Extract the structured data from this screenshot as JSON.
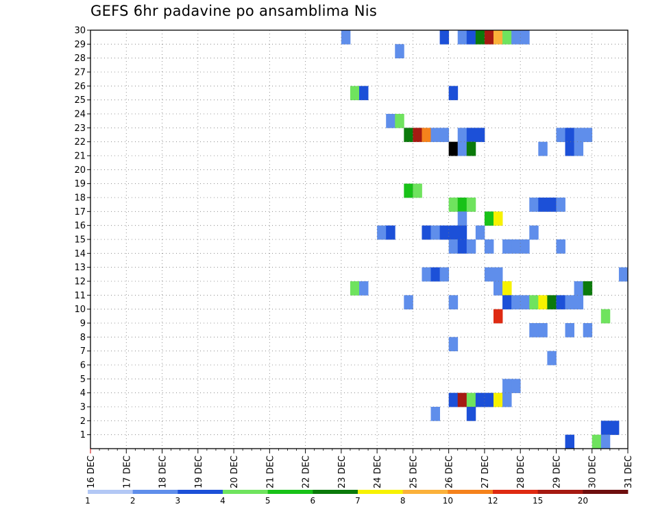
{
  "chart_data": {
    "type": "heatmap",
    "title": "GEFS 6hr padavine po ansamblima Nis",
    "y_labels": [
      "1",
      "2",
      "3",
      "4",
      "5",
      "6",
      "7",
      "8",
      "9",
      "10",
      "11",
      "12",
      "13",
      "14",
      "15",
      "16",
      "17",
      "18",
      "19",
      "20",
      "21",
      "22",
      "23",
      "24",
      "25",
      "26",
      "27",
      "28",
      "29",
      "30"
    ],
    "x_tick_labels": [
      "16 DEC",
      "17 DEC",
      "18 DEC",
      "19 DEC",
      "20 DEC",
      "21 DEC",
      "22 DEC",
      "23 DEC",
      "24 DEC",
      "25 DEC",
      "26 DEC",
      "27 DEC",
      "28 DEC",
      "29 DEC",
      "30 DEC",
      "31 DEC"
    ],
    "x_unit": "6-hour steps from 16 DEC 00Z (4 steps per day)",
    "xlim": [
      0,
      60
    ],
    "ylim": [
      0,
      30
    ],
    "colorbar": {
      "labels": [
        "1",
        "2",
        "3",
        "4",
        "5",
        "6",
        "7",
        "8",
        "10",
        "12",
        "15",
        "20"
      ],
      "colors": [
        "#b3c8f5",
        "#5f8eeb",
        "#1c50d8",
        "#6fe35e",
        "#18c218",
        "#0b7a0b",
        "#f7f200",
        "#fbb13a",
        "#f5821c",
        "#df2a12",
        "#a61a12",
        "#6e0e0e"
      ]
    },
    "cells": [
      [
        28,
        30,
        1
      ],
      [
        39,
        30,
        2
      ],
      [
        41,
        30,
        1
      ],
      [
        42,
        30,
        2
      ],
      [
        43,
        30,
        5
      ],
      [
        44,
        30,
        10
      ],
      [
        45,
        30,
        7
      ],
      [
        46,
        30,
        3
      ],
      [
        47,
        30,
        1
      ],
      [
        48,
        30,
        1
      ],
      [
        34,
        29,
        1
      ],
      [
        29,
        26,
        3
      ],
      [
        30,
        26,
        2
      ],
      [
        40,
        26,
        2
      ],
      [
        33,
        24,
        1
      ],
      [
        34,
        24,
        3
      ],
      [
        35,
        23,
        5
      ],
      [
        36,
        23,
        10
      ],
      [
        37,
        23,
        8
      ],
      [
        38,
        23,
        1
      ],
      [
        39,
        23,
        1
      ],
      [
        41,
        23,
        1
      ],
      [
        42,
        23,
        2
      ],
      [
        43,
        23,
        2
      ],
      [
        52,
        23,
        1
      ],
      [
        53,
        23,
        2
      ],
      [
        54,
        23,
        1
      ],
      [
        55,
        23,
        1
      ],
      [
        40,
        22,
        12
      ],
      [
        41,
        22,
        1
      ],
      [
        42,
        22,
        5
      ],
      [
        50,
        22,
        1
      ],
      [
        53,
        22,
        2
      ],
      [
        54,
        22,
        1
      ],
      [
        35,
        19,
        4
      ],
      [
        36,
        19,
        3
      ],
      [
        40,
        18,
        3
      ],
      [
        41,
        18,
        4
      ],
      [
        42,
        18,
        3
      ],
      [
        49,
        18,
        1
      ],
      [
        50,
        18,
        2
      ],
      [
        51,
        18,
        2
      ],
      [
        52,
        18,
        1
      ],
      [
        41,
        17,
        1
      ],
      [
        44,
        17,
        4
      ],
      [
        45,
        17,
        6
      ],
      [
        32,
        16,
        1
      ],
      [
        33,
        16,
        2
      ],
      [
        37,
        16,
        2
      ],
      [
        38,
        16,
        1
      ],
      [
        39,
        16,
        2
      ],
      [
        40,
        16,
        2
      ],
      [
        41,
        16,
        2
      ],
      [
        43,
        16,
        1
      ],
      [
        49,
        16,
        1
      ],
      [
        40,
        15,
        1
      ],
      [
        41,
        15,
        2
      ],
      [
        42,
        15,
        1
      ],
      [
        44,
        15,
        1
      ],
      [
        46,
        15,
        1
      ],
      [
        47,
        15,
        1
      ],
      [
        48,
        15,
        1
      ],
      [
        52,
        15,
        1
      ],
      [
        37,
        13,
        1
      ],
      [
        38,
        13,
        2
      ],
      [
        39,
        13,
        1
      ],
      [
        44,
        13,
        1
      ],
      [
        45,
        13,
        1
      ],
      [
        59,
        13,
        1
      ],
      [
        29,
        12,
        3
      ],
      [
        30,
        12,
        1
      ],
      [
        45,
        12,
        1
      ],
      [
        46,
        12,
        6
      ],
      [
        54,
        12,
        1
      ],
      [
        55,
        12,
        5
      ],
      [
        35,
        11,
        1
      ],
      [
        40,
        11,
        1
      ],
      [
        46,
        11,
        2
      ],
      [
        47,
        11,
        1
      ],
      [
        48,
        11,
        1
      ],
      [
        49,
        11,
        3
      ],
      [
        50,
        11,
        6
      ],
      [
        51,
        11,
        5
      ],
      [
        52,
        11,
        2
      ],
      [
        53,
        11,
        1
      ],
      [
        54,
        11,
        1
      ],
      [
        45,
        10,
        9
      ],
      [
        57,
        10,
        3
      ],
      [
        49,
        9,
        1
      ],
      [
        50,
        9,
        1
      ],
      [
        53,
        9,
        1
      ],
      [
        55,
        9,
        1
      ],
      [
        40,
        8,
        1
      ],
      [
        51,
        7,
        1
      ],
      [
        46,
        5,
        1
      ],
      [
        47,
        5,
        1
      ],
      [
        40,
        4,
        2
      ],
      [
        41,
        4,
        10
      ],
      [
        42,
        4,
        3
      ],
      [
        43,
        4,
        2
      ],
      [
        44,
        4,
        2
      ],
      [
        45,
        4,
        6
      ],
      [
        46,
        4,
        1
      ],
      [
        38,
        3,
        1
      ],
      [
        42,
        3,
        2
      ],
      [
        57,
        2,
        2
      ],
      [
        58,
        2,
        2
      ],
      [
        53,
        1,
        2
      ],
      [
        56,
        1,
        3
      ],
      [
        57,
        1,
        1
      ]
    ]
  }
}
